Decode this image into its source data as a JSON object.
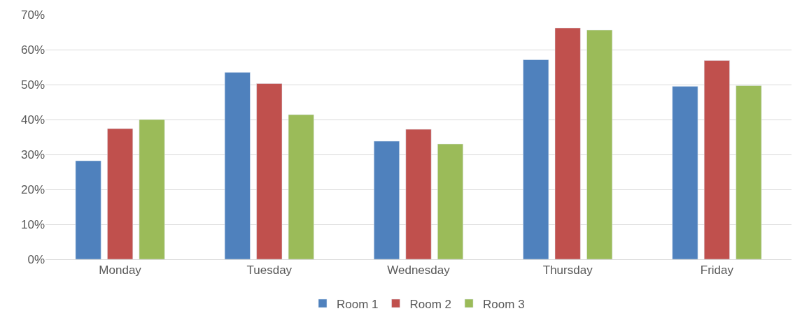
{
  "chart_data": {
    "type": "bar",
    "categories": [
      "Monday",
      "Tuesday",
      "Wednesday",
      "Thursday",
      "Friday"
    ],
    "series": [
      {
        "name": "Room 1",
        "color": "#4f81bd",
        "values": [
          28.2,
          53.5,
          33.8,
          57.1,
          49.5
        ]
      },
      {
        "name": "Room 2",
        "color": "#c0504d",
        "values": [
          37.4,
          50.3,
          37.2,
          66.2,
          56.9
        ]
      },
      {
        "name": "Room 3",
        "color": "#9bbb59",
        "values": [
          40.0,
          41.4,
          33.0,
          65.6,
          49.7
        ]
      }
    ],
    "ylim": [
      0,
      70
    ],
    "yticks": [
      {
        "value": 0,
        "label": "0%"
      },
      {
        "value": 10,
        "label": "10%"
      },
      {
        "value": 20,
        "label": "20%"
      },
      {
        "value": 30,
        "label": "30%"
      },
      {
        "value": 40,
        "label": "40%"
      },
      {
        "value": 50,
        "label": "50%"
      },
      {
        "value": 60,
        "label": "60%"
      },
      {
        "value": 70,
        "label": "70%"
      }
    ],
    "grid": "y",
    "legend": "bottom"
  }
}
